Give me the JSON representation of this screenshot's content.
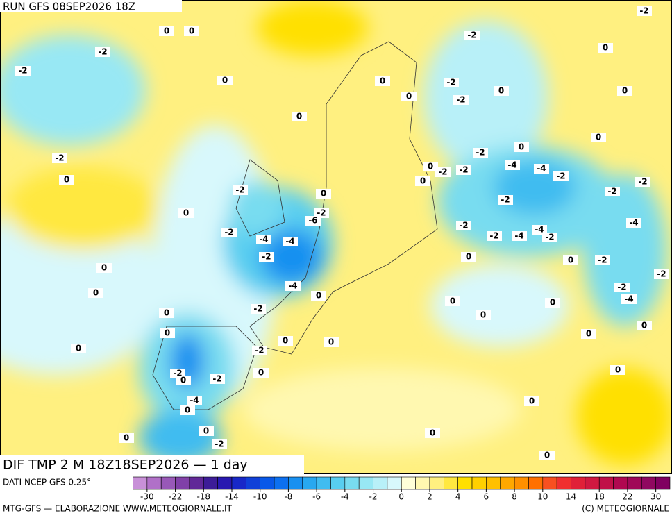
{
  "header": {
    "run": "RUN GFS 08SEP2026 18Z"
  },
  "map": {
    "title": "DIF TMP 2 M 18Z18SEP2026 — 1 day",
    "contour_labels": [
      0,
      0,
      -2,
      -2,
      0,
      0,
      0,
      0,
      -2,
      -2,
      0,
      0,
      -2,
      -2,
      0,
      -2,
      0,
      -2,
      0,
      0,
      0,
      -2,
      -2,
      -4,
      -4,
      -2,
      0,
      -2,
      -2,
      -2,
      0,
      0,
      -2,
      -6,
      -2,
      -2,
      -4,
      -2,
      -4,
      -4,
      -2,
      -4,
      -4,
      -2,
      -2,
      0,
      0,
      -2,
      0,
      -4,
      0,
      0,
      -2,
      -2,
      -4,
      0,
      0,
      -2,
      0,
      0,
      0,
      0,
      0,
      0,
      0,
      0,
      -2,
      0,
      -2,
      0,
      -2,
      0,
      -4,
      0,
      0,
      0,
      0,
      0,
      -2,
      0
    ]
  },
  "legend": {
    "source": "DATI NCEP GFS 0.25°",
    "labels": [
      -30,
      -22,
      -18,
      -14,
      -10,
      -8,
      -6,
      -4,
      -2,
      0,
      2,
      4,
      6,
      8,
      10,
      14,
      18,
      22,
      30
    ],
    "colors": [
      "#c890d8",
      "#b070c8",
      "#9858b8",
      "#8040a8",
      "#602898",
      "#3c1c98",
      "#2818b0",
      "#1828c8",
      "#1040d8",
      "#0858e8",
      "#0c70f0",
      "#1890f0",
      "#28a8f0",
      "#40bcf0",
      "#58cef0",
      "#78dcf0",
      "#98e8f4",
      "#b8f0f8",
      "#d8f8fc",
      "#ffffd8",
      "#fff8b0",
      "#fff080",
      "#ffe840",
      "#ffe000",
      "#ffd000",
      "#ffc000",
      "#ffa800",
      "#ff9000",
      "#ff7000",
      "#f85020",
      "#f03030",
      "#e02038",
      "#d01840",
      "#c01048",
      "#b00850",
      "#a00858",
      "#900860",
      "#800060"
    ]
  },
  "footer": {
    "left": "MTG-GFS — ELABORAZIONE WWW.METEOGIORNALE.IT",
    "right": "(C) METEOGIORNALE"
  }
}
